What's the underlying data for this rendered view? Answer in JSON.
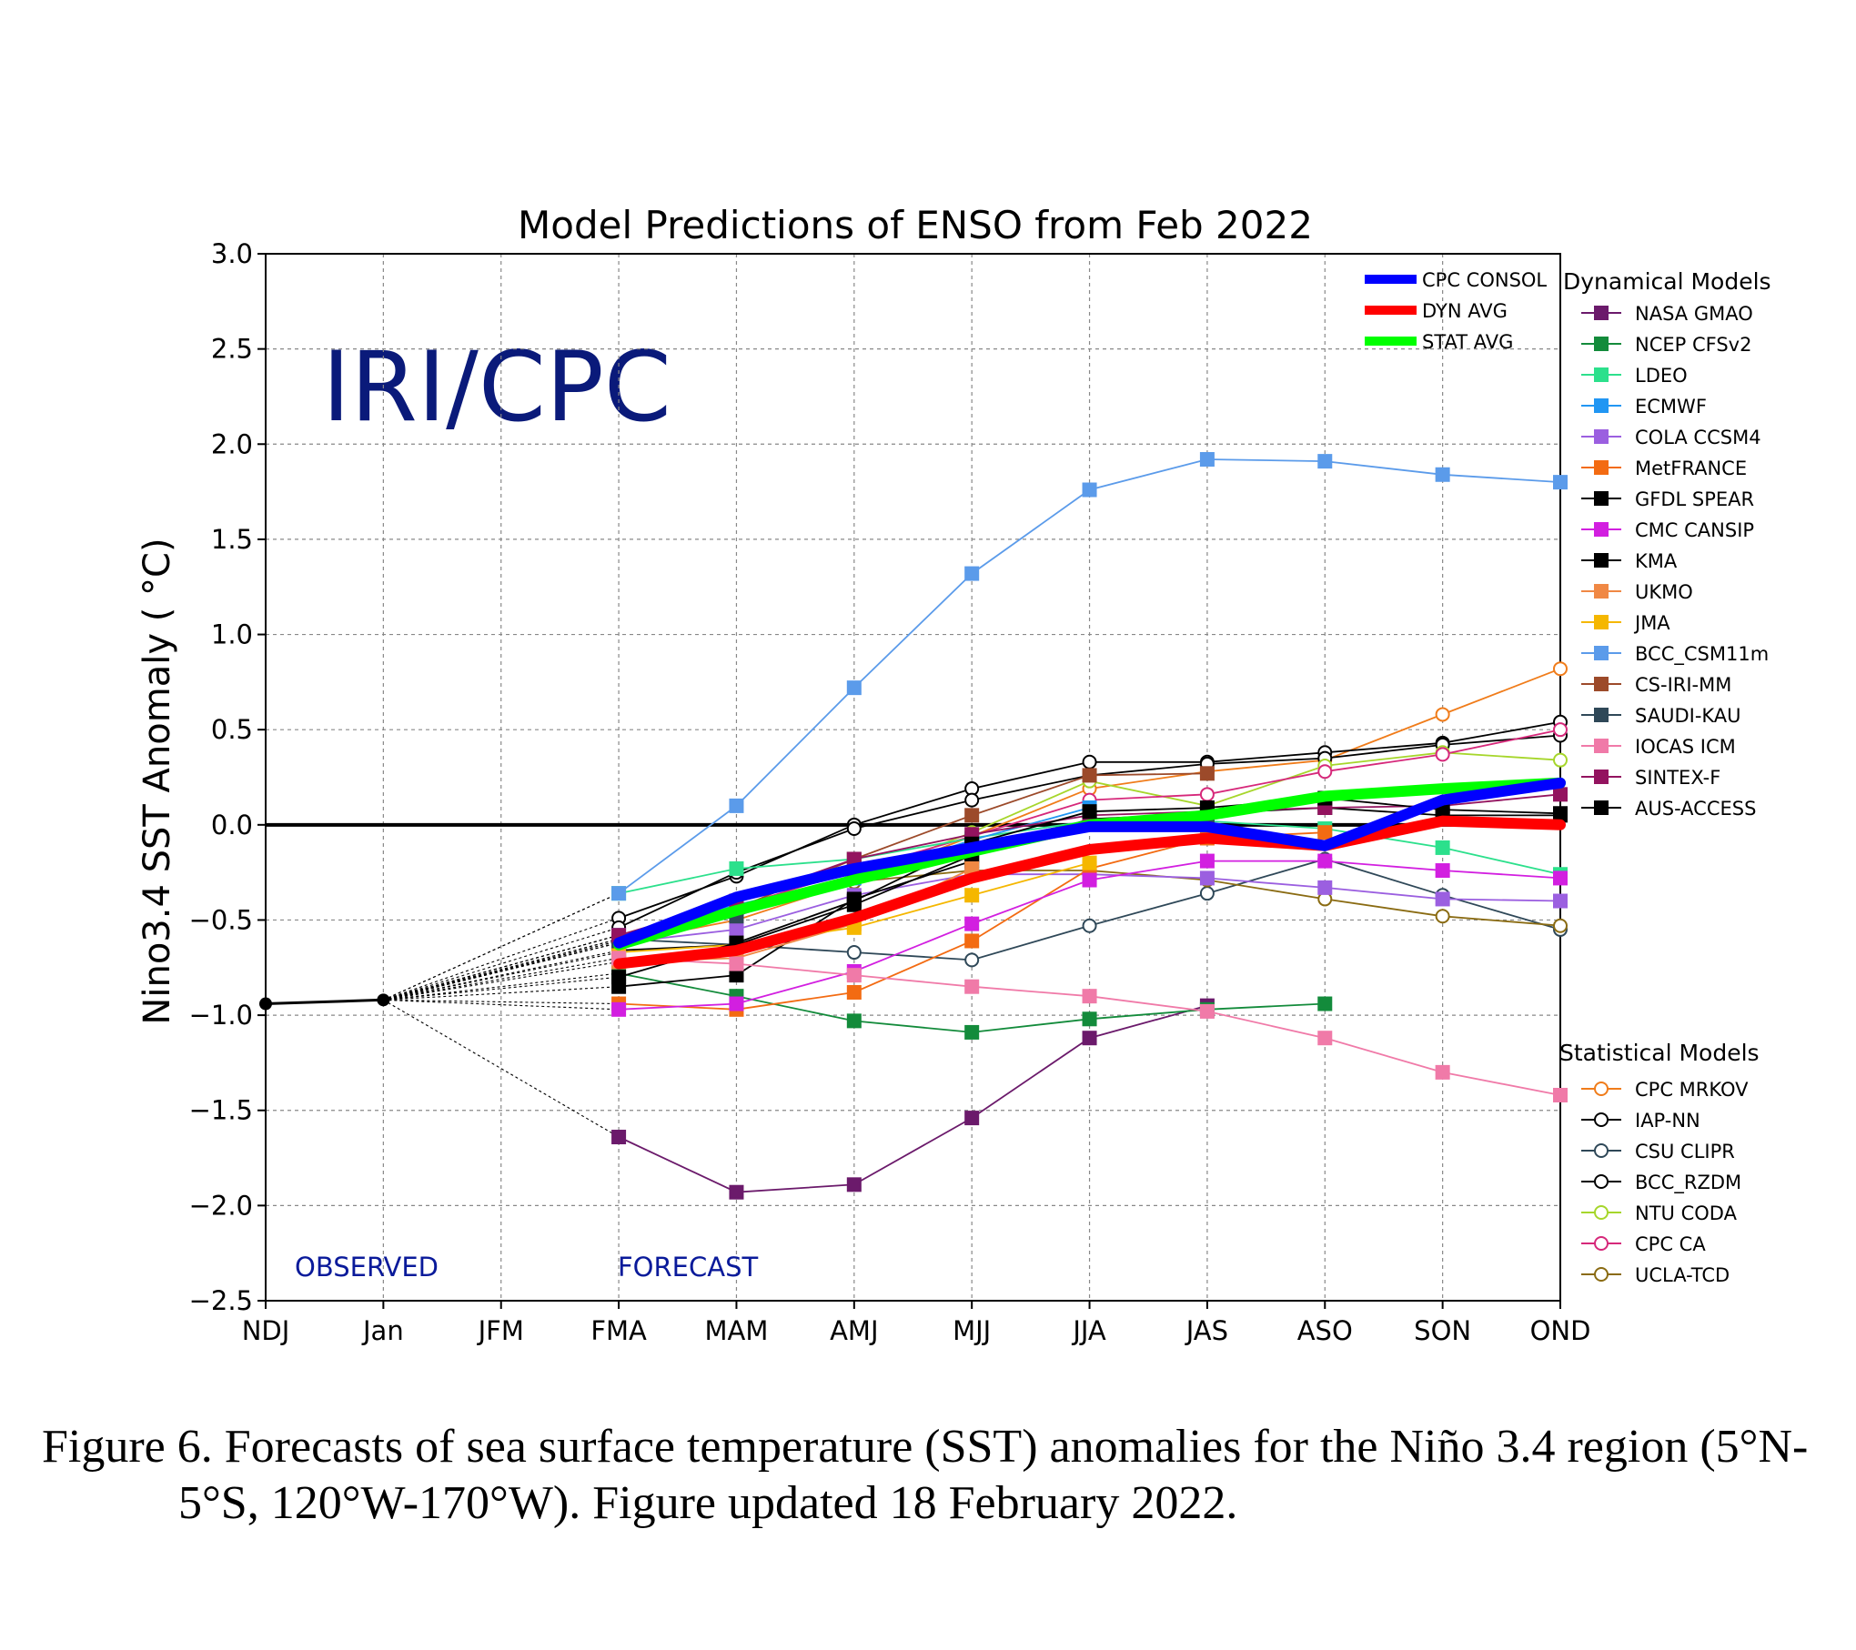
{
  "chart_data": {
    "type": "line",
    "title": "Model Predictions of ENSO from Feb 2022",
    "watermark": "IRI/CPC",
    "ylabel": "Nino3.4 SST Anomaly ( °C)",
    "xlabel": "",
    "ylim": [
      -2.5,
      3.0
    ],
    "yticks": [
      "3.0",
      "2.5",
      "2.0",
      "1.5",
      "1.0",
      "0.5",
      "0.0",
      "−0.5",
      "−1.0",
      "−1.5",
      "−2.0",
      "−2.5"
    ],
    "ytick_values": [
      3.0,
      2.5,
      2.0,
      1.5,
      1.0,
      0.5,
      0.0,
      -0.5,
      -1.0,
      -1.5,
      -2.0,
      -2.5
    ],
    "categories": [
      "NDJ",
      "Jan",
      "JFM",
      "FMA",
      "MAM",
      "AMJ",
      "MJJ",
      "JJA",
      "JAS",
      "ASO",
      "SON",
      "OND"
    ],
    "grid": true,
    "zero_line": true,
    "annotations": {
      "observed": "OBSERVED",
      "forecast": "FORECAST"
    },
    "observed": {
      "color": "#000000",
      "values": [
        -0.94,
        -0.92,
        null,
        null,
        null,
        null,
        null,
        null,
        null,
        null,
        null,
        null
      ]
    },
    "legend_main": [
      {
        "name": "CPC CONSOL",
        "color": "#0000ff"
      },
      {
        "name": "DYN AVG",
        "color": "#ff0000"
      },
      {
        "name": "STAT AVG",
        "color": "#00ff00"
      }
    ],
    "legend_dynamical_title": "Dynamical Models",
    "legend_statistical_title": "Statistical Models",
    "averages": [
      {
        "name": "CPC CONSOL",
        "color": "#0000ff",
        "values": [
          null,
          null,
          null,
          -0.62,
          -0.38,
          -0.23,
          -0.12,
          -0.01,
          -0.01,
          -0.11,
          0.13,
          0.22
        ]
      },
      {
        "name": "DYN AVG",
        "color": "#ff0000",
        "values": [
          null,
          null,
          null,
          -0.73,
          -0.66,
          -0.49,
          -0.28,
          -0.13,
          -0.07,
          -0.11,
          0.02,
          0.0
        ]
      },
      {
        "name": "STAT AVG",
        "color": "#00ff00",
        "values": [
          null,
          null,
          null,
          -0.63,
          -0.45,
          -0.29,
          -0.14,
          0.0,
          0.05,
          0.15,
          0.19,
          0.22
        ]
      }
    ],
    "dynamical": [
      {
        "name": "NASA GMAO",
        "color": "#6b1a6b",
        "values": [
          null,
          null,
          null,
          -1.64,
          -1.93,
          -1.89,
          -1.54,
          -1.12,
          -0.95,
          null,
          null,
          null
        ]
      },
      {
        "name": "NCEP CFSv2",
        "color": "#138b3b",
        "values": [
          null,
          null,
          null,
          -0.78,
          -0.9,
          -1.03,
          -1.09,
          -1.02,
          -0.97,
          -0.94,
          null,
          null
        ]
      },
      {
        "name": "LDEO",
        "color": "#2ce08c",
        "values": [
          null,
          null,
          null,
          -0.36,
          -0.23,
          -0.18,
          -0.07,
          0.02,
          0.02,
          -0.02,
          -0.12,
          -0.26
        ]
      },
      {
        "name": "ECMWF",
        "color": "#2196f3",
        "values": [
          null,
          null,
          null,
          -0.58,
          -0.42,
          -0.28,
          -0.08,
          0.09,
          null,
          null,
          null,
          null
        ]
      },
      {
        "name": "COLA CCSM4",
        "color": "#9b5fe0",
        "values": [
          null,
          null,
          null,
          -0.62,
          -0.55,
          -0.37,
          -0.26,
          -0.26,
          -0.28,
          -0.33,
          -0.39,
          -0.4
        ]
      },
      {
        "name": "MetFRANCE",
        "color": "#f36b12",
        "values": [
          null,
          null,
          null,
          -0.94,
          -0.97,
          -0.88,
          -0.61,
          -0.23,
          -0.07,
          -0.04,
          null,
          null
        ]
      },
      {
        "name": "GFDL SPEAR",
        "color": "#000000",
        "values": [
          null,
          null,
          null,
          -0.66,
          -0.63,
          -0.42,
          -0.16,
          0.03,
          0.06,
          0.09,
          0.05,
          0.05
        ]
      },
      {
        "name": "CMC CANSIP",
        "color": "#d21fe0",
        "values": [
          null,
          null,
          null,
          -0.97,
          -0.94,
          -0.77,
          -0.52,
          -0.29,
          -0.19,
          -0.19,
          -0.24,
          -0.28
        ]
      },
      {
        "name": "KMA",
        "color": "#000000",
        "values": [
          null,
          null,
          null,
          -0.85,
          -0.79,
          -0.39,
          -0.19,
          null,
          null,
          null,
          null,
          null
        ]
      },
      {
        "name": "UKMO",
        "color": "#f08844",
        "values": [
          null,
          null,
          null,
          -0.72,
          -0.7,
          -0.52,
          -0.23,
          null,
          null,
          null,
          null,
          null
        ]
      },
      {
        "name": "JMA",
        "color": "#f5b700",
        "values": [
          null,
          null,
          null,
          -0.67,
          -0.63,
          -0.54,
          -0.37,
          -0.2,
          null,
          null,
          null,
          null
        ]
      },
      {
        "name": "BCC_CSM11m",
        "color": "#5b9bea",
        "values": [
          null,
          null,
          null,
          -0.36,
          0.1,
          0.72,
          1.32,
          1.76,
          1.92,
          1.91,
          1.84,
          1.8
        ]
      },
      {
        "name": "CS-IRI-MM",
        "color": "#9c4a2a",
        "values": [
          null,
          null,
          null,
          -0.61,
          -0.44,
          -0.18,
          0.05,
          0.26,
          0.27,
          null,
          null,
          null
        ]
      },
      {
        "name": "SAUDI-KAU",
        "color": "#2f4858",
        "values": [
          null,
          null,
          null,
          -0.61,
          -0.48,
          -0.26,
          -0.11,
          0.02,
          0.02,
          null,
          null,
          null
        ]
      },
      {
        "name": "IOCAS ICM",
        "color": "#f07aa8",
        "values": [
          null,
          null,
          null,
          -0.7,
          -0.73,
          -0.79,
          -0.85,
          -0.9,
          -0.98,
          -1.12,
          -1.3,
          -1.42
        ]
      },
      {
        "name": "SINTEX-F",
        "color": "#93135f",
        "values": [
          null,
          null,
          null,
          -0.58,
          -0.4,
          -0.18,
          -0.05,
          0.05,
          0.07,
          0.09,
          0.1,
          0.16
        ]
      },
      {
        "name": "AUS-ACCESS",
        "color": "#000000",
        "values": [
          null,
          null,
          null,
          -0.8,
          -0.62,
          -0.4,
          -0.1,
          0.07,
          0.09,
          0.14,
          0.08,
          0.06
        ]
      }
    ],
    "statistical": [
      {
        "name": "CPC MRKOV",
        "color": "#f07c1a",
        "values": [
          null,
          null,
          null,
          -0.62,
          -0.5,
          -0.3,
          -0.06,
          0.19,
          0.28,
          0.34,
          0.58,
          0.82
        ]
      },
      {
        "name": "IAP-NN",
        "color": "#000000",
        "values": [
          null,
          null,
          null,
          -0.49,
          -0.27,
          0.0,
          0.19,
          0.33,
          0.33,
          0.38,
          0.43,
          0.54
        ]
      },
      {
        "name": "CSU CLIPR",
        "color": "#2f4858",
        "values": [
          null,
          null,
          null,
          -0.6,
          -0.63,
          -0.67,
          -0.71,
          -0.53,
          -0.36,
          -0.18,
          -0.37,
          -0.55
        ]
      },
      {
        "name": "BCC_RZDM",
        "color": "#000000",
        "values": [
          null,
          null,
          null,
          -0.54,
          -0.25,
          -0.02,
          0.13,
          0.26,
          0.32,
          0.35,
          0.42,
          0.47
        ]
      },
      {
        "name": "NTU CODA",
        "color": "#a6d62b",
        "values": [
          null,
          null,
          null,
          -0.6,
          -0.47,
          -0.28,
          -0.04,
          0.23,
          0.1,
          0.31,
          0.38,
          0.34
        ]
      },
      {
        "name": "CPC CA",
        "color": "#d6287a",
        "values": [
          null,
          null,
          null,
          -0.58,
          -0.43,
          -0.24,
          -0.06,
          0.13,
          0.16,
          0.28,
          0.37,
          0.5
        ]
      },
      {
        "name": "UCLA-TCD",
        "color": "#8a6b12",
        "values": [
          null,
          null,
          null,
          -0.62,
          -0.45,
          -0.3,
          -0.24,
          -0.24,
          -0.29,
          -0.39,
          -0.48,
          -0.53
        ]
      }
    ]
  },
  "caption": {
    "line1": "Figure 6. Forecasts of sea surface temperature (SST) anomalies for the Niño 3.4 region (5°N-",
    "line2": "5°S, 120°W-170°W). Figure updated 18 February 2022."
  }
}
